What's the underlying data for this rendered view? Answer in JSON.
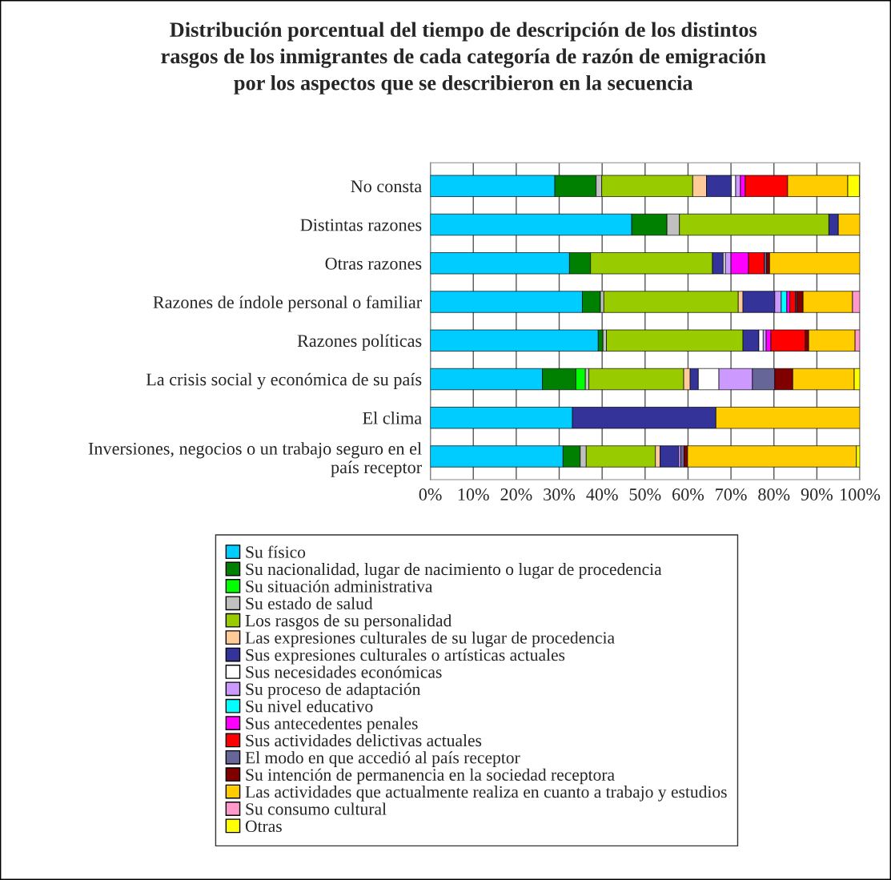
{
  "chart_data": {
    "type": "bar",
    "orientation": "horizontal",
    "stacked": true,
    "title": "Distribución porcentual del tiempo de descripción de los distintos\nrasgos de los inmigrantes de cada categoría de razón de emigración\npor los aspectos que se describieron en la secuencia",
    "categories": [
      "No consta",
      "Distintas razones",
      "Otras razones",
      "Razones de índole personal o familiar",
      "Razones políticas",
      "La crisis social y económica de su país",
      "El clima",
      "Inversiones, negocios o un trabajo seguro en el\npaís receptor"
    ],
    "xlim": [
      0,
      100
    ],
    "xticks": [
      {
        "value": 0,
        "label": "0%"
      },
      {
        "value": 10,
        "label": "10%"
      },
      {
        "value": 20,
        "label": "20%"
      },
      {
        "value": 30,
        "label": "30%"
      },
      {
        "value": 40,
        "label": "40%"
      },
      {
        "value": 50,
        "label": "50%"
      },
      {
        "value": 60,
        "label": "60%"
      },
      {
        "value": 70,
        "label": "70%"
      },
      {
        "value": 80,
        "label": "80%"
      },
      {
        "value": 90,
        "label": "90%"
      },
      {
        "value": 100,
        "label": "100%"
      }
    ],
    "grid": "x",
    "legend": "bottom",
    "series": [
      {
        "name": "Su físico",
        "color": "#00ccff",
        "values": [
          29.0,
          46.9,
          32.4,
          35.4,
          39.1,
          26.1,
          33.1,
          30.9
        ]
      },
      {
        "name": "Su nacionalidad, lugar de nacimiento o lugar de procedencia",
        "color": "#008000",
        "values": [
          9.6,
          8.2,
          4.9,
          4.2,
          1.1,
          7.8,
          0,
          4.0
        ]
      },
      {
        "name": "Su situación administrativa",
        "color": "#00ff00",
        "values": [
          0,
          0,
          0,
          0,
          0,
          2.2,
          0,
          0
        ]
      },
      {
        "name": "Su estado de salud",
        "color": "#c0c0c0",
        "values": [
          1.3,
          2.9,
          0,
          0.8,
          0.8,
          0.8,
          0,
          1.4
        ]
      },
      {
        "name": "Los rasgos de su personalidad",
        "color": "#99cc00",
        "values": [
          21.2,
          34.8,
          28.4,
          31.3,
          31.8,
          22.1,
          0,
          16.1
        ]
      },
      {
        "name": "Las expresiones culturales de su lugar de procedencia",
        "color": "#ffcc99",
        "values": [
          3.2,
          0,
          0,
          1.1,
          0,
          1.5,
          0,
          1.1
        ]
      },
      {
        "name": "Sus expresiones culturales o artísticas actuales",
        "color": "#333399",
        "values": [
          5.8,
          2.2,
          2.5,
          7.4,
          3.7,
          1.9,
          33.4,
          4.3
        ]
      },
      {
        "name": "Sus necesidades económicas",
        "color": "#ffffff",
        "values": [
          1.0,
          0,
          0.5,
          0,
          1.0,
          4.8,
          0,
          0
        ]
      },
      {
        "name": "Su proceso de adaptación",
        "color": "#cc99ff",
        "values": [
          1.1,
          0,
          1.3,
          1.5,
          0.7,
          7.8,
          0,
          0.5
        ]
      },
      {
        "name": "Su nivel educativo",
        "color": "#00ffff",
        "values": [
          0,
          0,
          0,
          1.3,
          0,
          0,
          0,
          0
        ]
      },
      {
        "name": "Sus antecedentes penales",
        "color": "#ff00ff",
        "values": [
          1.1,
          0,
          4.1,
          0.7,
          1.1,
          0,
          0,
          0
        ]
      },
      {
        "name": "Sus actividades delictivas actuales",
        "color": "#ff0000",
        "values": [
          9.9,
          0,
          3.7,
          1.3,
          8.0,
          0,
          0,
          0
        ]
      },
      {
        "name": "El modo en que accedió al país receptor",
        "color": "#666699",
        "values": [
          0,
          0,
          0.5,
          0.3,
          0,
          5.2,
          0,
          0.8
        ]
      },
      {
        "name": "Su intención de permanencia en la sociedad receptora",
        "color": "#800000",
        "values": [
          0,
          0,
          0.7,
          1.5,
          0.8,
          4.2,
          0,
          0.8
        ]
      },
      {
        "name": "Las actividades que actualmente realiza en cuanto a trabajo y estudios",
        "color": "#ffcc00",
        "values": [
          14.0,
          5.0,
          21.0,
          11.5,
          10.8,
          14.3,
          33.5,
          39.3
        ]
      },
      {
        "name": "Su consumo cultural",
        "color": "#ff99cc",
        "values": [
          0,
          0,
          0,
          1.7,
          1.1,
          0,
          0,
          0
        ]
      },
      {
        "name": "Otras",
        "color": "#ffff00",
        "values": [
          2.7,
          0,
          0,
          0,
          0,
          1.3,
          0,
          0.8
        ]
      }
    ]
  }
}
